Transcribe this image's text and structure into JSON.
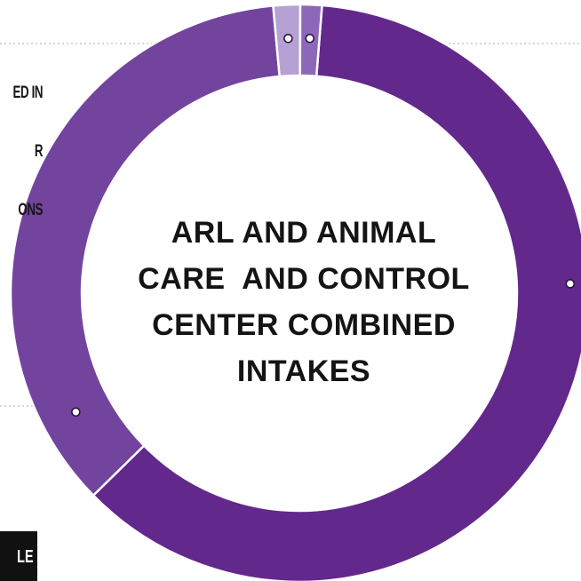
{
  "chart_data": {
    "type": "pie",
    "donut": true,
    "title": "ARL AND ANIMAL CARE  AND CONTROL CENTER COMBINED INTAKES",
    "title_lines": [
      "ARL AND ANIMAL",
      "CARE  AND CONTROL",
      "CENTER COMBINED",
      "INTAKES"
    ],
    "slices": [
      {
        "value": 61.4,
        "color": "#63288c"
      },
      {
        "value": 35.9,
        "color": "#73449e"
      },
      {
        "value": 1.5,
        "color": "#b6a1d4"
      },
      {
        "value": 1.2,
        "color": "#8e68b8"
      }
    ],
    "visible_labels": {
      "top_left_lines": [
        "ED IN",
        "R",
        "ONS"
      ],
      "bottom_left_tag": "LE"
    },
    "grid": false,
    "legend": "none"
  }
}
